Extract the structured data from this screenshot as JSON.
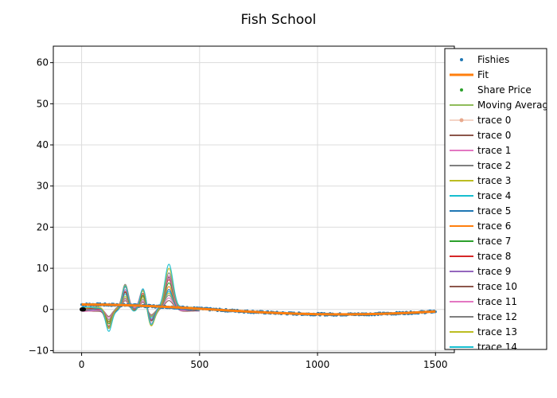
{
  "chart_data": {
    "type": "line",
    "title": "Fish School",
    "xlabel": "",
    "ylabel": "",
    "xlim": [
      -120,
      1580
    ],
    "ylim": [
      -10.5,
      64
    ],
    "x_ticks": [
      0,
      500,
      1000,
      1500
    ],
    "y_ticks": [
      -10,
      0,
      10,
      20,
      30,
      40,
      50,
      60
    ],
    "grid": true,
    "legend_position": "right",
    "fishies": {
      "name": "Fishies",
      "color": "#1f77b4",
      "x_range": [
        0,
        1500
      ],
      "amplitude": 1.2,
      "min_at_x": 1100
    },
    "fit": {
      "name": "Fit",
      "color": "#ff7f0e",
      "x_range": [
        0,
        1500
      ]
    },
    "share_price": {
      "name": "Share Price",
      "color": "#2ca02c"
    },
    "moving_average": {
      "name": "Moving Average",
      "color": "#8fbc5a"
    },
    "trace0_markers": {
      "name": "trace 0",
      "color": "#e8a88c"
    },
    "wave_traces": {
      "x_range": [
        0,
        500
      ],
      "names": [
        "trace 0",
        "trace 1",
        "trace 2",
        "trace 3",
        "trace 4",
        "trace 5",
        "trace 6",
        "trace 7",
        "trace 8",
        "trace 9",
        "trace 10",
        "trace 11",
        "trace 12",
        "trace 13",
        "trace 14"
      ],
      "colors": [
        "#8c564b",
        "#e377c2",
        "#7f7f7f",
        "#bcbd22",
        "#17becf",
        "#1f77b4",
        "#ff7f0e",
        "#2ca02c",
        "#d62728",
        "#9467bd",
        "#8c564b",
        "#e377c2",
        "#7f7f7f",
        "#bcbd22",
        "#17becf"
      ],
      "peaks": [
        {
          "x": 115,
          "y": -5.2
        },
        {
          "x": 185,
          "y": 6.3
        },
        {
          "x": 260,
          "y": 5.4
        },
        {
          "x": 295,
          "y": -3.8
        },
        {
          "x": 370,
          "y": 10.4
        }
      ]
    }
  }
}
